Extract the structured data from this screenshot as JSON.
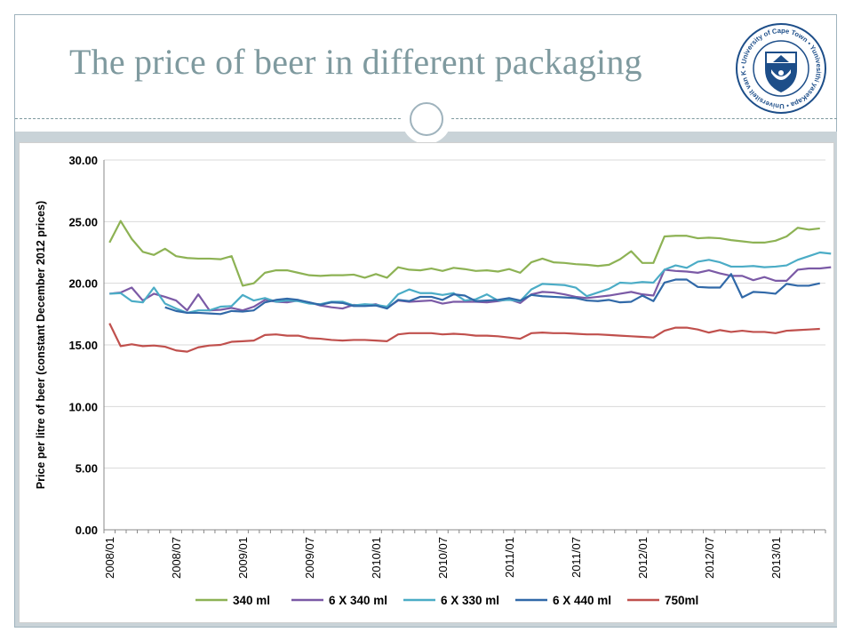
{
  "slide": {
    "title": "The price of beer in different packaging",
    "logo_text": "• University of Cape Town • Yunivesithi yaseKapa • Universiteit van Kaapstad",
    "logo_colors": {
      "navy": "#1d4e89",
      "white": "#ffffff"
    }
  },
  "chart_data": {
    "type": "line",
    "title": "",
    "xlabel": "",
    "ylabel": "Price per litre of beer (constant December 2012 prices)",
    "ylim": [
      0,
      30
    ],
    "yticks": [
      "0.00",
      "5.00",
      "10.00",
      "15.00",
      "20.00",
      "25.00",
      "30.00"
    ],
    "xticks": [
      "2008/01",
      "2008/07",
      "2009/01",
      "2009/07",
      "2010/01",
      "2010/07",
      "2011/01",
      "2011/07",
      "2012/01",
      "2012/07",
      "2013/01"
    ],
    "x_start": "2008/01",
    "x_frequency": "monthly",
    "grid": "horizontal",
    "legend_position": "bottom",
    "series": [
      {
        "name": "340 ml",
        "color": "#8db254",
        "values": [
          23.3,
          25.05,
          23.6,
          22.55,
          22.3,
          22.8,
          22.2,
          22.05,
          22.0,
          22.0,
          21.95,
          22.2,
          19.8,
          20.0,
          20.85,
          21.05,
          21.05,
          20.85,
          20.65,
          20.6,
          20.65,
          20.65,
          20.7,
          20.45,
          20.75,
          20.45,
          21.3,
          21.1,
          21.05,
          21.2,
          21.0,
          21.25,
          21.15,
          21.0,
          21.05,
          20.95,
          21.15,
          20.85,
          21.7,
          22.0,
          21.7,
          21.65,
          21.55,
          21.5,
          21.4,
          21.5,
          21.95,
          22.6,
          21.65,
          21.65,
          23.8,
          23.85,
          23.85,
          23.65,
          23.7,
          23.65,
          23.5,
          23.4,
          23.3,
          23.3,
          23.45,
          23.8,
          24.5,
          24.35,
          24.45
        ]
      },
      {
        "name": "6 X 340 ml",
        "color": "#7b5aa6",
        "values": [
          19.15,
          19.25,
          19.65,
          18.6,
          19.15,
          18.9,
          18.6,
          17.8,
          19.1,
          17.8,
          17.85,
          18.0,
          17.8,
          18.1,
          18.65,
          18.5,
          18.45,
          18.6,
          18.45,
          18.2,
          18.05,
          17.95,
          18.25,
          18.2,
          18.3,
          18.0,
          18.6,
          18.5,
          18.55,
          18.6,
          18.35,
          18.5,
          18.5,
          18.5,
          18.45,
          18.55,
          18.7,
          18.4,
          19.1,
          19.3,
          19.25,
          19.1,
          18.9,
          18.8,
          18.9,
          19.0,
          19.15,
          19.3,
          19.1,
          19.0,
          21.1,
          21.0,
          20.95,
          20.85,
          21.05,
          20.8,
          20.6,
          20.6,
          20.25,
          20.5,
          20.2,
          20.2,
          21.1,
          21.2,
          21.2,
          21.3
        ]
      },
      {
        "name": "6 X 330 ml",
        "color": "#4bacc6",
        "values": [
          19.15,
          19.2,
          18.55,
          18.45,
          19.65,
          18.35,
          17.95,
          17.6,
          17.8,
          17.8,
          18.1,
          18.15,
          19.05,
          18.6,
          18.8,
          18.5,
          18.6,
          18.55,
          18.35,
          18.3,
          18.5,
          18.5,
          18.2,
          18.3,
          18.25,
          18.1,
          19.1,
          19.5,
          19.2,
          19.2,
          19.05,
          19.2,
          18.6,
          18.7,
          19.1,
          18.6,
          18.65,
          18.55,
          19.5,
          19.95,
          19.9,
          19.85,
          19.65,
          18.95,
          19.25,
          19.55,
          20.05,
          20.0,
          20.1,
          20.05,
          21.1,
          21.45,
          21.25,
          21.75,
          21.9,
          21.7,
          21.35,
          21.35,
          21.4,
          21.3,
          21.35,
          21.45,
          21.9,
          22.2,
          22.5,
          22.4
        ]
      },
      {
        "name": "6 X 440 ml",
        "color": "#3169a8",
        "values": [
          null,
          null,
          null,
          null,
          null,
          18.05,
          17.75,
          17.6,
          17.6,
          17.55,
          17.5,
          17.75,
          17.7,
          17.8,
          18.45,
          18.65,
          18.75,
          18.65,
          18.45,
          18.25,
          18.45,
          18.4,
          18.15,
          18.15,
          18.2,
          17.95,
          18.65,
          18.55,
          18.9,
          18.9,
          18.65,
          19.1,
          19.0,
          18.55,
          18.6,
          18.65,
          18.8,
          18.6,
          19.05,
          18.95,
          18.9,
          18.85,
          18.8,
          18.6,
          18.55,
          18.65,
          18.45,
          18.5,
          19.0,
          18.55,
          20.05,
          20.3,
          20.3,
          19.7,
          19.65,
          19.65,
          20.75,
          18.85,
          19.3,
          19.25,
          19.15,
          19.95,
          19.8,
          19.8,
          20.0
        ]
      },
      {
        "name": "750ml",
        "color": "#c0504d",
        "values": [
          16.75,
          14.9,
          15.05,
          14.9,
          14.95,
          14.85,
          14.55,
          14.45,
          14.8,
          14.95,
          15.0,
          15.25,
          15.3,
          15.35,
          15.8,
          15.85,
          15.75,
          15.75,
          15.55,
          15.5,
          15.4,
          15.35,
          15.4,
          15.4,
          15.35,
          15.3,
          15.85,
          15.95,
          15.95,
          15.95,
          15.85,
          15.9,
          15.85,
          15.75,
          15.75,
          15.7,
          15.6,
          15.5,
          15.95,
          16.0,
          15.95,
          15.95,
          15.9,
          15.85,
          15.85,
          15.8,
          15.75,
          15.7,
          15.65,
          15.6,
          16.15,
          16.4,
          16.4,
          16.25,
          16.0,
          16.2,
          16.05,
          16.15,
          16.05,
          16.05,
          15.95,
          16.15,
          16.2,
          16.25,
          16.3
        ]
      }
    ]
  }
}
